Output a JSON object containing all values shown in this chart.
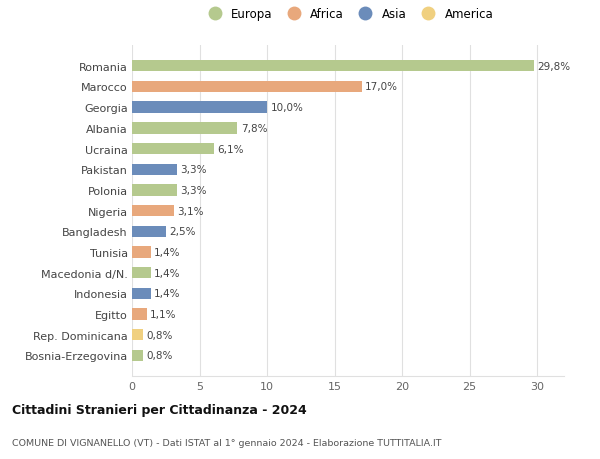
{
  "countries": [
    "Romania",
    "Marocco",
    "Georgia",
    "Albania",
    "Ucraina",
    "Pakistan",
    "Polonia",
    "Nigeria",
    "Bangladesh",
    "Tunisia",
    "Macedonia d/N.",
    "Indonesia",
    "Egitto",
    "Rep. Dominicana",
    "Bosnia-Erzegovina"
  ],
  "values": [
    29.8,
    17.0,
    10.0,
    7.8,
    6.1,
    3.3,
    3.3,
    3.1,
    2.5,
    1.4,
    1.4,
    1.4,
    1.1,
    0.8,
    0.8
  ],
  "labels": [
    "29,8%",
    "17,0%",
    "10,0%",
    "7,8%",
    "6,1%",
    "3,3%",
    "3,3%",
    "3,1%",
    "2,5%",
    "1,4%",
    "1,4%",
    "1,4%",
    "1,1%",
    "0,8%",
    "0,8%"
  ],
  "continents": [
    "Europa",
    "Africa",
    "Asia",
    "Europa",
    "Europa",
    "Asia",
    "Europa",
    "Africa",
    "Asia",
    "Africa",
    "Europa",
    "Asia",
    "Africa",
    "America",
    "Europa"
  ],
  "continent_colors": {
    "Europa": "#b5c98e",
    "Africa": "#e8a87c",
    "Asia": "#6b8cba",
    "America": "#f0d080"
  },
  "legend_order": [
    "Europa",
    "Africa",
    "Asia",
    "America"
  ],
  "title": "Cittadini Stranieri per Cittadinanza - 2024",
  "subtitle": "COMUNE DI VIGNANELLO (VT) - Dati ISTAT al 1° gennaio 2024 - Elaborazione TUTTITALIA.IT",
  "xlim": [
    0,
    32
  ],
  "xticks": [
    0,
    5,
    10,
    15,
    20,
    25,
    30
  ],
  "bg_color": "#ffffff",
  "grid_color": "#e0e0e0",
  "bar_height": 0.55
}
